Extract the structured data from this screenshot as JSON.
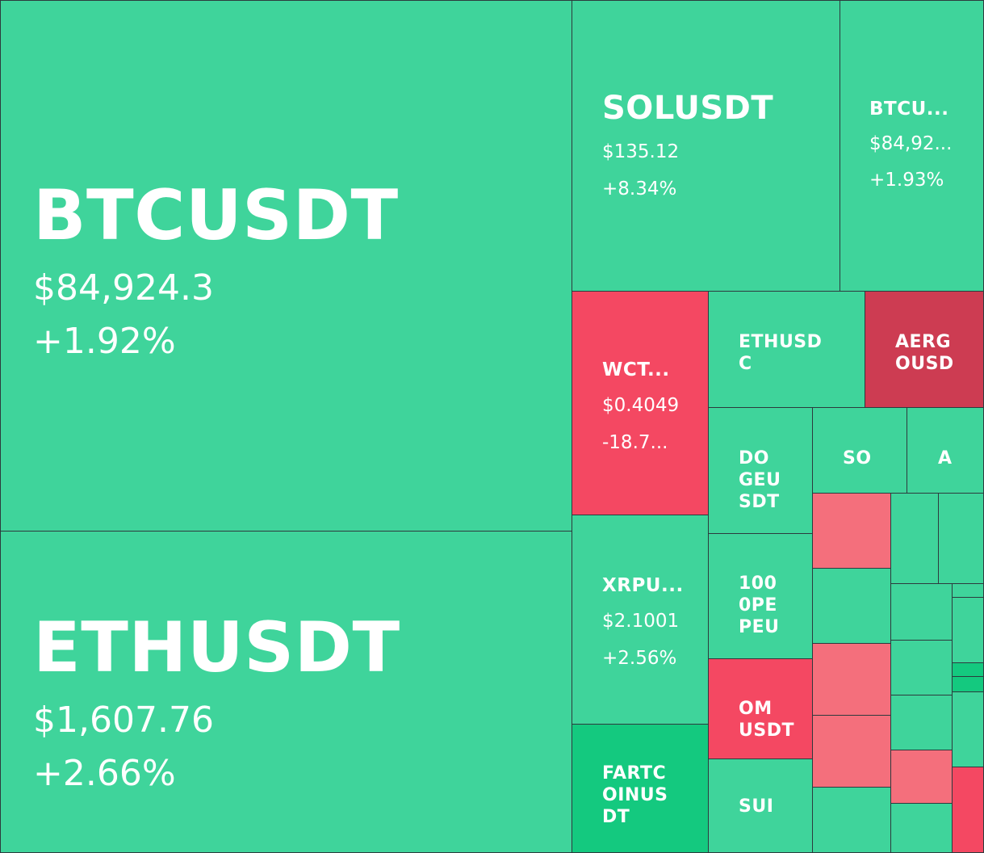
{
  "colors": {
    "gain": "#3fd49b",
    "gain_strong": "#14c97f",
    "loss": "#f44862",
    "loss_dark": "#cd3c52",
    "loss_light": "#f46f7c",
    "border": "#2d3a3d"
  },
  "tiles": {
    "btcusdt": {
      "symbol": "BTCUSDT",
      "price": "$84,924.3",
      "change": "+1.92%"
    },
    "ethusdt": {
      "symbol": "ETHUSDT",
      "price": "$1,607.76",
      "change": "+2.66%"
    },
    "solusdt": {
      "symbol": "SOLUSDT",
      "price": "$135.12",
      "change": "+8.34%"
    },
    "btcu": {
      "symbol": "BTCU...",
      "price": "$84,92...",
      "change": "+1.93%"
    },
    "wct": {
      "symbol": "WCT...",
      "price": "$0.4049",
      "change": "-18.7..."
    },
    "ethusdc": {
      "symbol": "ETHUSD\nC"
    },
    "aergousd": {
      "symbol": "AERG\nOUSD"
    },
    "dogeusdt": {
      "symbol": "DO\nGEU\nSDT"
    },
    "so": {
      "symbol": "SO"
    },
    "a": {
      "symbol": "A"
    },
    "xrpu": {
      "symbol": "XRPU...",
      "price": "$2.1001",
      "change": "+2.56%"
    },
    "pepe": {
      "symbol": "100\n0PE\nPEU"
    },
    "om": {
      "symbol": "OM\nUSDT"
    },
    "fartcoin": {
      "symbol": "FARTC\nOINUS\nDT"
    },
    "sui": {
      "symbol": "SUI"
    }
  }
}
